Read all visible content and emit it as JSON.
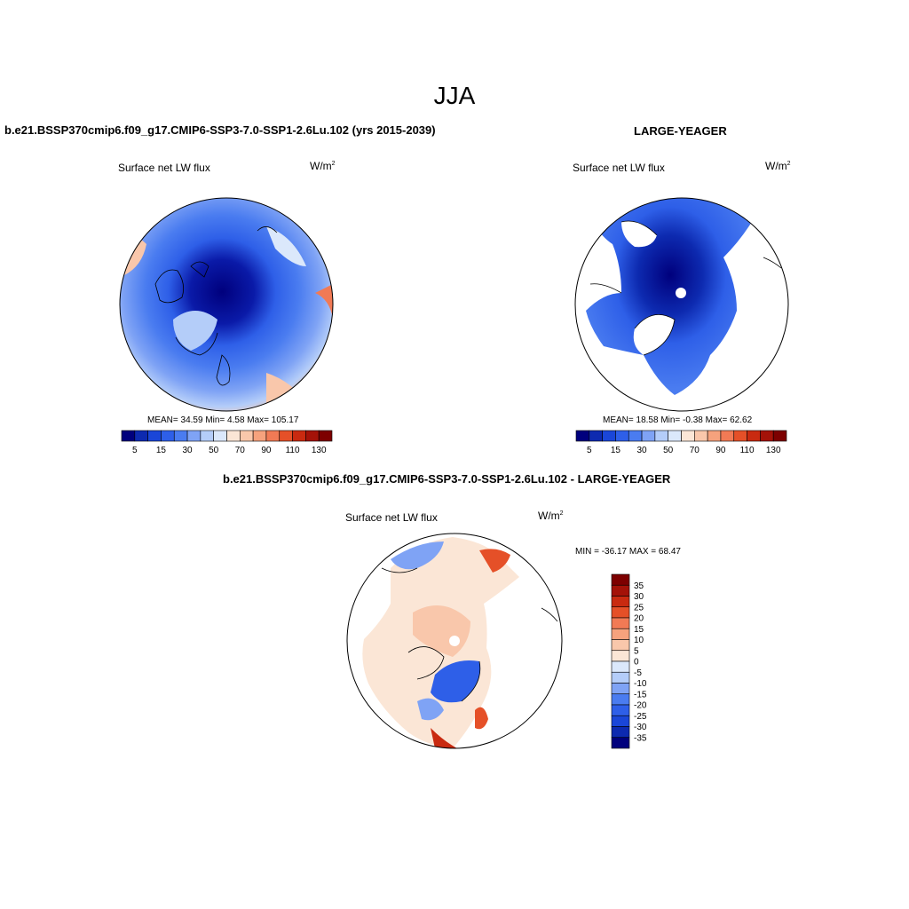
{
  "figure": {
    "season": "JJA",
    "panel1_title": "b.e21.BSSP370cmip6.f09_g17.CMIP6-SSP3-7.0-SSP1-2.6Lu.102 (yrs 2015-2039)",
    "panel2_title": "LARGE-YEAGER",
    "panel3_title": "b.e21.BSSP370cmip6.f09_g17.CMIP6-SSP3-7.0-SSP1-2.6Lu.102 - LARGE-YEAGER"
  },
  "variable": "Surface net LW flux",
  "units": "W/m",
  "units_exp": "2",
  "panels": [
    {
      "id": "model",
      "stats": "MEAN=  34.59  Min=    4.58  Max= 105.17",
      "mean": 34.59,
      "min": 4.58,
      "max": 105.17
    },
    {
      "id": "obs",
      "stats": "MEAN=  18.58  Min=   -0.38  Max=  62.62",
      "mean": 18.58,
      "min": -0.38,
      "max": 62.62
    },
    {
      "id": "difference",
      "stats": "MIN = -36.17 MAX =  68.47",
      "min": -36.17,
      "max": 68.47
    }
  ],
  "colorbar_abs": {
    "colors": [
      "#00007d",
      "#0d2ab0",
      "#1a46d8",
      "#2e5fe8",
      "#4a7cf0",
      "#7fa3f5",
      "#b4cdf9",
      "#dbe8fb",
      "#fbe6d6",
      "#f9c7ab",
      "#f6a27d",
      "#f17a55",
      "#e55028",
      "#c92a10",
      "#a41208",
      "#7d0000"
    ],
    "tick_labels": [
      "5",
      "15",
      "30",
      "50",
      "70",
      "90",
      "110",
      "130"
    ]
  },
  "colorbar_diff": {
    "colors": [
      "#00007d",
      "#0d2ab0",
      "#1a46d8",
      "#2e5fe8",
      "#4a7cf0",
      "#7fa3f5",
      "#b4cdf9",
      "#dbe8fb",
      "#fbe6d6",
      "#f9c7ab",
      "#f6a27d",
      "#f17a55",
      "#e55028",
      "#c92a10",
      "#a41208",
      "#7d0000"
    ],
    "tick_labels": [
      "35",
      "30",
      "25",
      "20",
      "15",
      "10",
      "5",
      "0",
      "-5",
      "-10",
      "-15",
      "-20",
      "-25",
      "-30",
      "-35"
    ]
  },
  "chart_data": [
    {
      "type": "heatmap",
      "title": "Surface net LW flux",
      "subtitle": "b.e21.BSSP370cmip6.f09_g17.CMIP6-SSP3-7.0-SSP1-2.6Lu.102 (yrs 2015-2039)",
      "projection": "polar stereographic (north)",
      "units": "W/m2",
      "levels": [
        5,
        10,
        15,
        20,
        30,
        40,
        50,
        60,
        70,
        80,
        90,
        100,
        110,
        120,
        130
      ],
      "stats": {
        "mean": 34.59,
        "min": 4.58,
        "max": 105.17
      }
    },
    {
      "type": "heatmap",
      "title": "Surface net LW flux",
      "subtitle": "LARGE-YEAGER",
      "projection": "polar stereographic (north)",
      "units": "W/m2",
      "levels": [
        5,
        10,
        15,
        20,
        30,
        40,
        50,
        60,
        70,
        80,
        90,
        100,
        110,
        120,
        130
      ],
      "stats": {
        "mean": 18.58,
        "min": -0.38,
        "max": 62.62
      }
    },
    {
      "type": "heatmap",
      "title": "Surface net LW flux",
      "subtitle": "b.e21.BSSP370cmip6.f09_g17.CMIP6-SSP3-7.0-SSP1-2.6Lu.102 - LARGE-YEAGER",
      "projection": "polar stereographic (north)",
      "units": "W/m2",
      "levels": [
        -35,
        -30,
        -25,
        -20,
        -15,
        -10,
        -5,
        0,
        5,
        10,
        15,
        20,
        25,
        30,
        35
      ],
      "stats": {
        "min": -36.17,
        "max": 68.47
      }
    }
  ]
}
